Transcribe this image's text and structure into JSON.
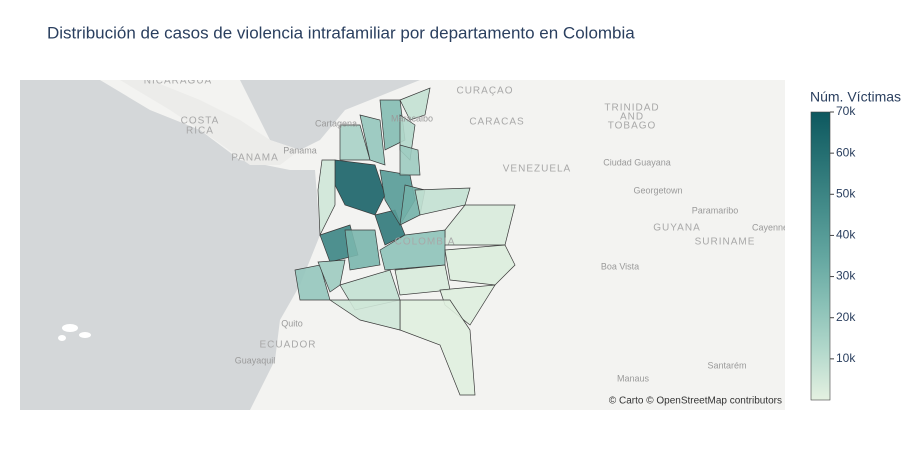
{
  "chart_data": {
    "type": "choropleth",
    "title": "Distribución de casos de violencia intrafamiliar por departamento en Colombia",
    "colorbar_title": "Núm. Víctimas",
    "clim": [
      0,
      70000
    ],
    "cticks": [
      {
        "value": 10000,
        "label": "10k"
      },
      {
        "value": 20000,
        "label": "20k"
      },
      {
        "value": 30000,
        "label": "30k"
      },
      {
        "value": 40000,
        "label": "40k"
      },
      {
        "value": 50000,
        "label": "50k"
      },
      {
        "value": 60000,
        "label": "60k"
      },
      {
        "value": 70000,
        "label": "70k"
      }
    ],
    "colorscale": [
      "#e4f1e1",
      "#b4d9cc",
      "#89c0b6",
      "#63a6a0",
      "#448c8a",
      "#287274",
      "#0d585f"
    ],
    "values": [
      65000,
      50000,
      55000,
      40000,
      30000,
      8000,
      3000,
      22000,
      2000,
      3000,
      1500,
      8000,
      1000,
      5000,
      20000,
      18000,
      5000,
      15000,
      20000,
      25000,
      12000,
      8000,
      18000,
      28000
    ],
    "map_labels": [
      "NICARAGUA",
      "COSTA",
      "RICA",
      "PANAMA",
      "Panama",
      "Cartagena",
      "Maracaibo",
      "CURAÇAO",
      "CARACAS",
      "TRINIDAD",
      "AND",
      "TOBAGO",
      "VENEZUELA",
      "Ciudad Guayana",
      "Georgetown",
      "Paramaribo",
      "GUYANA",
      "SURINAME",
      "Cayenne",
      "Boa Vista",
      "COLOMBIA",
      "Quito",
      "ECUADOR",
      "Guayaquil",
      "Manaus",
      "Santarém"
    ],
    "attribution": "© Carto © OpenStreetMap contributors"
  }
}
